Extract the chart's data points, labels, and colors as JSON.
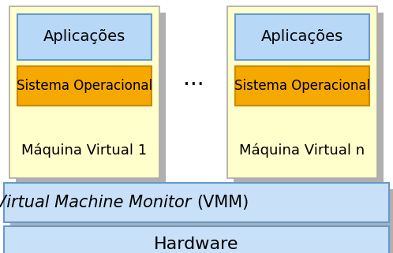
{
  "bg_color": "#ffffff",
  "gray_shadow": "#b0b0b0",
  "vm_box_color": "#ffffcc",
  "vm_box_edge": "#aaaaaa",
  "app_box_color": "#b8d8f8",
  "app_box_edge": "#6699cc",
  "so_box_color": "#f5a800",
  "so_box_edge": "#cc8800",
  "vmm_box_color": "#c8e0f8",
  "vmm_box_edge": "#6699cc",
  "hw_box_color": "#c8e0f8",
  "hw_box_edge": "#6699cc",
  "text_color": "#000000",
  "dots_text": "...",
  "vm1_label": "Máquina Virtual 1",
  "vmn_label": "Máquina Virtual n",
  "app_label": "Aplicações",
  "so_label": "Sistema Operacional",
  "vmm_italic": "Virtual Machine Monitor ",
  "vmm_normal": "(VMM)",
  "hw_label": "Hardware",
  "fig_width": 4.98,
  "fig_height": 3.21,
  "dpi": 100
}
